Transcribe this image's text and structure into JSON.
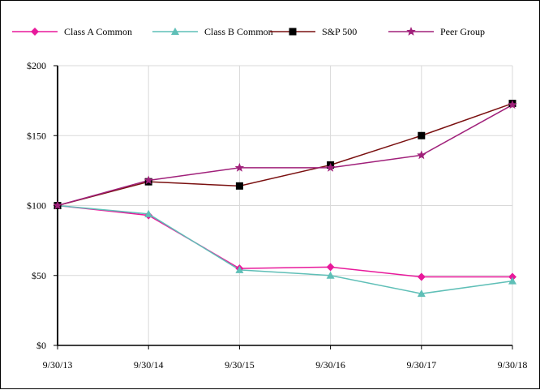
{
  "chart_data": {
    "type": "line",
    "title": "",
    "xlabel": "",
    "ylabel": "",
    "categories": [
      "9/30/13",
      "9/30/14",
      "9/30/15",
      "9/30/16",
      "9/30/17",
      "9/30/18"
    ],
    "y_ticks": [
      "$0",
      "$50",
      "$100",
      "$150",
      "$200"
    ],
    "ylim": [
      0,
      200
    ],
    "grid": true,
    "legend_position": "top",
    "series": [
      {
        "name": "Class A Common",
        "values": [
          100,
          93,
          55,
          56,
          49,
          49
        ],
        "color": "#e8199b",
        "marker": "diamond"
      },
      {
        "name": "Class B Common",
        "values": [
          100,
          94,
          54,
          50,
          37,
          46
        ],
        "color": "#5fbfb7",
        "marker": "triangle"
      },
      {
        "name": "S&P 500",
        "values": [
          100,
          117,
          114,
          129,
          150,
          173
        ],
        "color": "#7a1010",
        "marker_color": "#000000",
        "marker": "square"
      },
      {
        "name": "Peer Group",
        "values": [
          100,
          118,
          127,
          127,
          136,
          172
        ],
        "color": "#a0207a",
        "marker": "star"
      }
    ]
  }
}
